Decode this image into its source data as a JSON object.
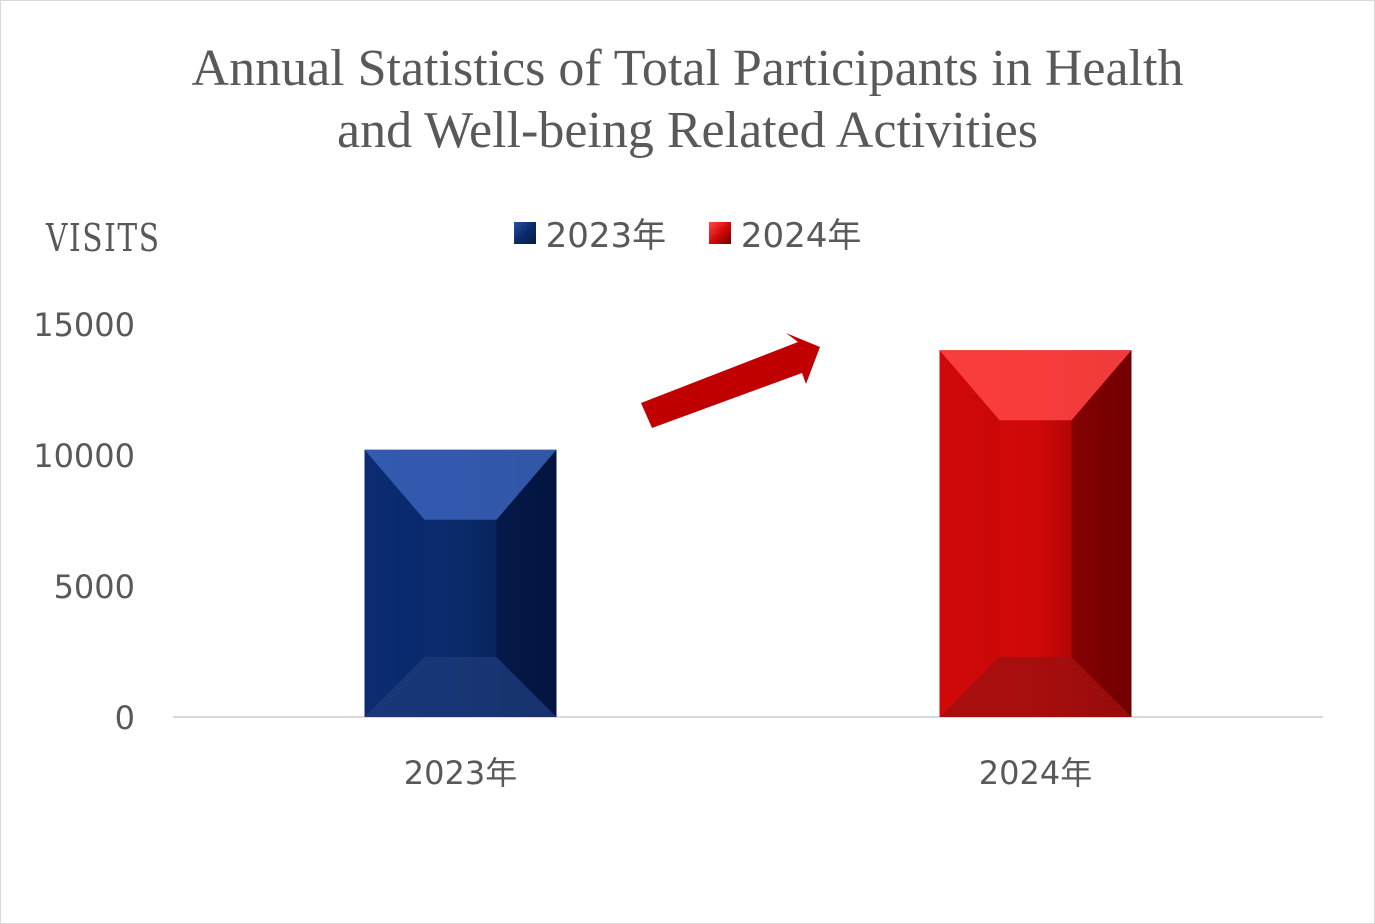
{
  "chart_data": {
    "type": "bar",
    "title_lines": [
      "Annual Statistics of Total Participants in Health",
      "and Well-being Related Activities"
    ],
    "ylabel": "VISITS",
    "xlabel": "",
    "categories": [
      "2023年",
      "2024年"
    ],
    "series": [
      {
        "name": "2023年",
        "values": [
          10200,
          null
        ],
        "color": "#0b2a6e"
      },
      {
        "name": "2024年",
        "values": [
          null,
          14000
        ],
        "color": "#d50a0a"
      }
    ],
    "values": [
      10200,
      14000
    ],
    "ylim": [
      0,
      15000
    ],
    "yticks": [
      "15000",
      "10000",
      "5000",
      "0"
    ],
    "ytick_values": [
      15000,
      10000,
      5000,
      0
    ],
    "legend_position": "top-center",
    "grid": false,
    "annotation": "upward-trend-arrow"
  }
}
